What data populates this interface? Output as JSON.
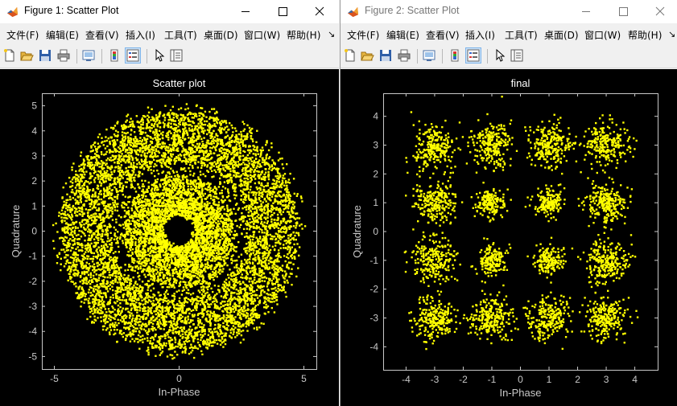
{
  "windows": [
    {
      "title": "Figure 1: Scatter Plot",
      "menu": [
        "文件(F)",
        "编辑(E)",
        "查看(V)",
        "插入(I)",
        "工具(T)",
        "桌面(D)",
        "窗口(W)",
        "帮助(H)"
      ],
      "menu_overflow": "↘",
      "chart_data": {
        "type": "scatter",
        "title": "Scatter plot",
        "xlabel": "In-Phase",
        "ylabel": "Quadrature",
        "xlim": [
          -5.5,
          5.5
        ],
        "ylim": [
          -5.5,
          5.5
        ],
        "xticks": [
          -5,
          0,
          5
        ],
        "yticks": [
          -5,
          -4,
          -3,
          -2,
          -1,
          0,
          1,
          2,
          3,
          4,
          5
        ],
        "marker_color": "#ffff00",
        "background": "#000000",
        "point_density": [
          {
            "region": "center hole",
            "radius_range": [
              0,
              0.6
            ],
            "density": "none"
          },
          {
            "region": "inner dense ring",
            "radius_range": [
              0.6,
              2.3
            ],
            "density": "high"
          },
          {
            "region": "separation ring",
            "radius_range": [
              2.3,
              2.8
            ],
            "density": "sparse"
          },
          {
            "region": "outer dense ring",
            "radius_range": [
              2.8,
              4.8
            ],
            "density": "high"
          }
        ]
      }
    },
    {
      "title": "Figure 2: Scatter Plot",
      "menu": [
        "文件(F)",
        "编辑(E)",
        "查看(V)",
        "插入(I)",
        "工具(T)",
        "桌面(D)",
        "窗口(W)",
        "帮助(H)"
      ],
      "menu_overflow": "↘",
      "chart_data": {
        "type": "scatter",
        "title": "final",
        "xlabel": "In-Phase",
        "ylabel": "Quadrature",
        "xlim": [
          -4.8,
          4.8
        ],
        "ylim": [
          -4.8,
          4.8
        ],
        "xticks": [
          -4,
          -3,
          -2,
          -1,
          0,
          1,
          2,
          3,
          4
        ],
        "yticks": [
          -4,
          -3,
          -2,
          -1,
          0,
          1,
          2,
          3,
          4
        ],
        "marker_color": "#ffff00",
        "background": "#000000",
        "clusters": {
          "i_levels": [
            -3,
            -1,
            1,
            3
          ],
          "q_levels": [
            -3,
            -1,
            1,
            3
          ],
          "outer_spread": 0.38,
          "inner_spread": 0.26
        }
      }
    }
  ],
  "icons": [
    "matlab-logo-icon",
    "new-figure-icon",
    "open-file-icon",
    "save-icon",
    "print-icon",
    "link-plot-icon",
    "colorbar-icon",
    "legend-icon",
    "pointer-icon",
    "property-inspector-icon"
  ],
  "colors": {
    "chrome": "#f0f0f0",
    "titlebar": "#ffffff",
    "plot_bg": "#000000",
    "marker": "#ffff00"
  }
}
